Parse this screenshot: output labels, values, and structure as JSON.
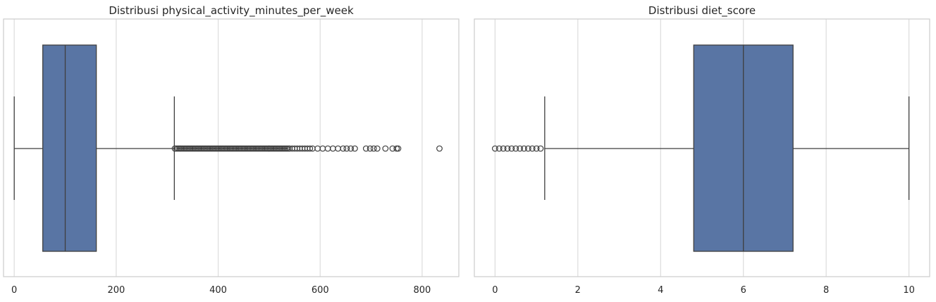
{
  "chart_data": [
    {
      "type": "box",
      "title": "Distribusi physical_activity_minutes_per_week",
      "xlabel": "",
      "ylabel": "",
      "xlim": [
        -21,
        872
      ],
      "xticks": [
        0,
        200,
        400,
        600,
        800
      ],
      "grid": true,
      "box": {
        "whisker_low": 0,
        "q1": 56,
        "median": 100,
        "q3": 161,
        "whisker_high": 314
      },
      "outliers": [
        315,
        318,
        321,
        324,
        327,
        330,
        333,
        336,
        339,
        342,
        345,
        348,
        351,
        354,
        357,
        360,
        363,
        366,
        369,
        372,
        375,
        378,
        381,
        384,
        387,
        390,
        393,
        396,
        399,
        402,
        405,
        408,
        411,
        414,
        417,
        420,
        423,
        426,
        429,
        432,
        435,
        438,
        441,
        444,
        447,
        450,
        453,
        456,
        459,
        462,
        465,
        468,
        471,
        474,
        477,
        480,
        483,
        486,
        489,
        492,
        495,
        498,
        501,
        504,
        507,
        510,
        513,
        516,
        519,
        522,
        525,
        528,
        531,
        534,
        537,
        540,
        545,
        550,
        555,
        560,
        565,
        570,
        575,
        580,
        585,
        595,
        605,
        615,
        625,
        635,
        645,
        652,
        660,
        668,
        690,
        698,
        705,
        712,
        728,
        742,
        750,
        753,
        834
      ],
      "color": "#5975a4"
    },
    {
      "type": "box",
      "title": "Distribusi diet_score",
      "xlabel": "",
      "ylabel": "",
      "xlim": [
        -0.5,
        10.5
      ],
      "xticks": [
        0,
        2,
        4,
        6,
        8,
        10
      ],
      "grid": true,
      "box": {
        "whisker_low": 1.2,
        "q1": 4.8,
        "median": 6.0,
        "q3": 7.2,
        "whisker_high": 10.0
      },
      "outliers": [
        0.0,
        0.1,
        0.2,
        0.3,
        0.4,
        0.5,
        0.6,
        0.7,
        0.8,
        0.9,
        1.0,
        1.1
      ],
      "color": "#5975a4"
    }
  ]
}
